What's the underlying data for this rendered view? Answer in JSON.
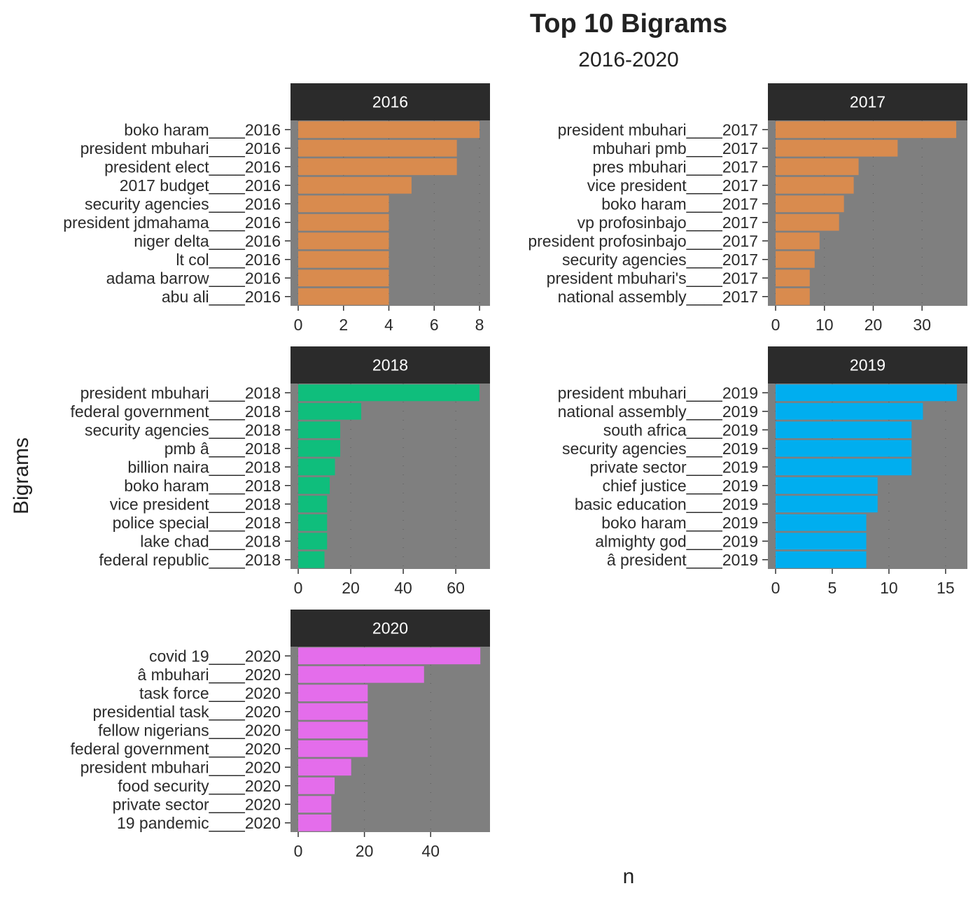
{
  "chart_data": {
    "type": "bar",
    "orientation": "horizontal",
    "title": "Top 10 Bigrams",
    "subtitle": "2016-2020",
    "xlabel": "n",
    "ylabel": "Bigrams",
    "grid": true,
    "panels": [
      {
        "strip": "2016",
        "color": "#D98B4E",
        "xlim": [
          0,
          8.4
        ],
        "ticks": [
          0,
          2,
          4,
          6,
          8
        ],
        "categories": [
          "boko haram____2016",
          "president mbuhari____2016",
          "president elect____2016",
          "2017 budget____2016",
          "security agencies____2016",
          "president jdmahama____2016",
          "niger delta____2016",
          "lt col____2016",
          "adama barrow____2016",
          "abu ali____2016"
        ],
        "values": [
          8,
          7,
          7,
          5,
          4,
          4,
          4,
          4,
          4,
          4
        ]
      },
      {
        "strip": "2017",
        "color": "#D98B4E",
        "xlim": [
          0,
          39
        ],
        "ticks": [
          0,
          10,
          20,
          30
        ],
        "categories": [
          "president mbuhari____2017",
          "mbuhari pmb____2017",
          "pres mbuhari____2017",
          "vice president____2017",
          "boko haram____2017",
          "vp profosinbajo____2017",
          "president profosinbajo____2017",
          "security agencies____2017",
          "president mbuhari's____2017",
          "national assembly____2017"
        ],
        "values": [
          37,
          25,
          17,
          16,
          14,
          13,
          9,
          8,
          7,
          7
        ]
      },
      {
        "strip": "2018",
        "color": "#0FBE7C",
        "xlim": [
          0,
          72.5
        ],
        "ticks": [
          0,
          20,
          40,
          60
        ],
        "categories": [
          "president mbuhari____2018",
          "federal government____2018",
          "security agencies____2018",
          "pmb â____2018",
          "billion naira____2018",
          "boko haram____2018",
          "vice president____2018",
          "police special____2018",
          "lake chad____2018",
          "federal republic____2018"
        ],
        "values": [
          69,
          24,
          16,
          16,
          14,
          12,
          11,
          11,
          11,
          10
        ]
      },
      {
        "strip": "2019",
        "color": "#00AEEF",
        "xlim": [
          0,
          16.8
        ],
        "ticks": [
          0,
          5,
          10,
          15
        ],
        "categories": [
          "president mbuhari____2019",
          "national assembly____2019",
          "south africa____2019",
          "security agencies____2019",
          "private sector____2019",
          "chief justice____2019",
          "basic education____2019",
          "boko haram____2019",
          "almighty god____2019",
          "â president____2019"
        ],
        "values": [
          16,
          13,
          12,
          12,
          12,
          9,
          9,
          8,
          8,
          8
        ]
      },
      {
        "strip": "2020",
        "color": "#E46DEB",
        "xlim": [
          0,
          57.5
        ],
        "ticks": [
          0,
          20,
          40
        ],
        "categories": [
          "covid 19____2020",
          "â mbuhari____2020",
          "task force____2020",
          "presidential task____2020",
          "fellow nigerians____2020",
          "federal government____2020",
          "president mbuhari____2020",
          "food security____2020",
          "private sector____2020",
          "19 pandemic____2020"
        ],
        "values": [
          55,
          38,
          21,
          21,
          21,
          21,
          16,
          11,
          10,
          10
        ]
      }
    ]
  }
}
